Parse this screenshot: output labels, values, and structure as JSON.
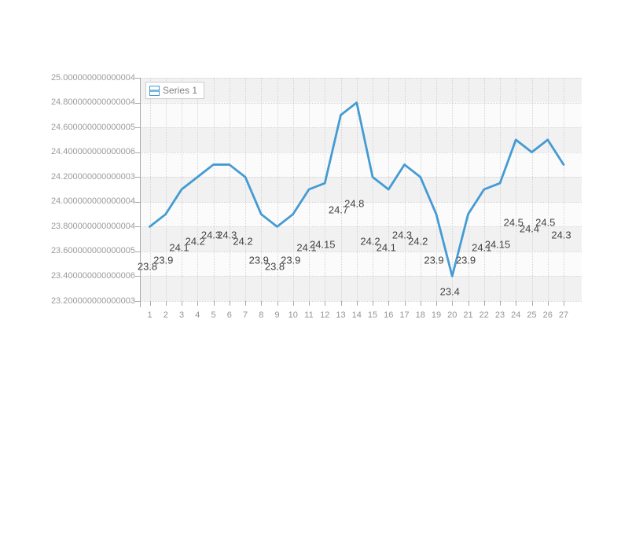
{
  "chart_data": {
    "type": "line",
    "title": "",
    "x": [
      1,
      2,
      3,
      4,
      5,
      6,
      7,
      8,
      9,
      10,
      11,
      12,
      13,
      14,
      15,
      16,
      17,
      18,
      19,
      20,
      21,
      22,
      23,
      24,
      25,
      26,
      27
    ],
    "x_tick_labels": [
      "1",
      "2",
      "3",
      "4",
      "5",
      "6",
      "7",
      "8",
      "9",
      "10",
      "11",
      "12",
      "13",
      "14",
      "15",
      "16",
      "17",
      "18",
      "19",
      "20",
      "21",
      "22",
      "23",
      "24",
      "25",
      "26",
      "27"
    ],
    "series": [
      {
        "name": "Series 1",
        "values": [
          23.8,
          23.9,
          24.1,
          24.2,
          24.3,
          24.3,
          24.2,
          23.9,
          23.8,
          23.9,
          24.1,
          24.15,
          24.7,
          24.8,
          24.2,
          24.1,
          24.3,
          24.2,
          23.9,
          23.4,
          23.9,
          24.1,
          24.15,
          24.5,
          24.4,
          24.5,
          24.3
        ],
        "point_labels": [
          "23.8",
          "23.9",
          "24.1",
          "24.2",
          "24.3",
          "24.3",
          "24.2",
          "23.9",
          "23.8",
          "23.9",
          "24.1",
          "24.15",
          "24.7",
          "24.8",
          "24.2",
          "24.1",
          "24.3",
          "24.2",
          "23.9",
          "23.4",
          "23.9",
          "24.1",
          "24.15",
          "24.5",
          "24.4",
          "24.5",
          "24.3"
        ]
      }
    ],
    "ylim": [
      23.2,
      25.0
    ],
    "y_tick_labels": [
      "25.000000000000004",
      "24.800000000000004",
      "24.600000000000005",
      "24.400000000000006",
      "24.200000000000003",
      "24.000000000000004",
      "23.800000000000004",
      "23.600000000000005",
      "23.400000000000006",
      "23.200000000000003"
    ],
    "grid": true,
    "legend_position": "inside-top-left"
  },
  "colors": {
    "line": "#449bd3",
    "band_dark": "#f1f1f1",
    "band_light": "#fbfbfb",
    "gridline": "#d4d4d4",
    "axis_line": "#a8a8a8",
    "y_label_text": "#9b9b9b",
    "x_label_text": "#949494",
    "point_label_text": "#3f3f3f",
    "legend_border": "#cccccc",
    "legend_text": "#7f7f7f"
  }
}
